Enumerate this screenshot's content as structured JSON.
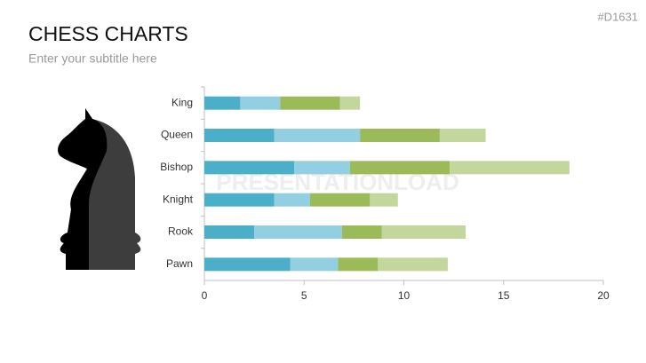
{
  "slide_id": "#D1631",
  "watermark": "PRESENTATIONLOAD",
  "chart_data": {
    "type": "stacked-barh",
    "title": "CHESS CHARTS",
    "subtitle": "Enter your subtitle here",
    "categories": [
      "King",
      "Queen",
      "Bishop",
      "Knight",
      "Rook",
      "Pawn"
    ],
    "series": [
      {
        "color": "#4bafc9",
        "values": [
          1.8,
          3.5,
          4.5,
          3.5,
          2.5,
          4.3
        ]
      },
      {
        "color": "#92cfe0",
        "values": [
          2.0,
          4.3,
          2.8,
          1.8,
          4.4,
          2.4
        ]
      },
      {
        "color": "#9bbb59",
        "values": [
          3.0,
          4.0,
          5.0,
          3.0,
          2.0,
          2.0
        ]
      },
      {
        "color": "#c3d69b",
        "values": [
          1.0,
          2.3,
          6.0,
          1.4,
          4.2,
          3.5
        ]
      }
    ],
    "xlim": [
      0,
      20
    ],
    "xticks": [
      0,
      5,
      10,
      15,
      20
    ]
  }
}
